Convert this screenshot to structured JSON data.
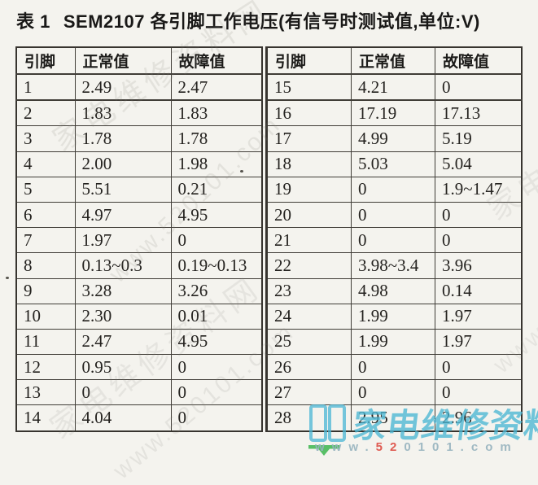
{
  "page": {
    "title_prefix": "表 1",
    "title_text": "SEM2107 各引脚工作电压(有信号时测试值,单位:V)"
  },
  "table": {
    "headers": [
      "引脚",
      "正常值",
      "故障值"
    ],
    "left_rows": [
      [
        "1",
        "2.49",
        "2.47"
      ],
      [
        "2",
        "1.83",
        "1.83"
      ],
      [
        "3",
        "1.78",
        "1.78"
      ],
      [
        "4",
        "2.00",
        "1.98"
      ],
      [
        "5",
        "5.51",
        "0.21"
      ],
      [
        "6",
        "4.97",
        "4.95"
      ],
      [
        "7",
        "1.97",
        "0"
      ],
      [
        "8",
        "0.13~0.3",
        "0.19~0.13"
      ],
      [
        "9",
        "3.28",
        "3.26"
      ],
      [
        "10",
        "2.30",
        "0.01"
      ],
      [
        "11",
        "2.47",
        "4.95"
      ],
      [
        "12",
        "0.95",
        "0"
      ],
      [
        "13",
        "0",
        "0"
      ],
      [
        "14",
        "4.04",
        "0"
      ]
    ],
    "right_rows": [
      [
        "15",
        "4.21",
        "0"
      ],
      [
        "16",
        "17.19",
        "17.13"
      ],
      [
        "17",
        "4.99",
        "5.19"
      ],
      [
        "18",
        "5.03",
        "5.04"
      ],
      [
        "19",
        "0",
        "1.9~1.47"
      ],
      [
        "20",
        "0",
        "0"
      ],
      [
        "21",
        "0",
        "0"
      ],
      [
        "22",
        "3.98~3.4",
        "3.96"
      ],
      [
        "23",
        "4.98",
        "0.14"
      ],
      [
        "24",
        "1.99",
        "1.97"
      ],
      [
        "25",
        "1.99",
        "1.97"
      ],
      [
        "26",
        "0",
        "0"
      ],
      [
        "27",
        "0",
        "0"
      ],
      [
        "28",
        "2.95",
        "2.96"
      ]
    ]
  },
  "watermark": {
    "site_name": "家电维修资料网",
    "site_url_prefix": "www.",
    "site_url_highlight": "52",
    "site_url_suffix": "0101.com",
    "logo_icon": "open-book",
    "colors": {
      "logo_cyan": "#4ab6d4",
      "underline_green": "#3cb54d",
      "url_gray": "#96b2be",
      "url_red": "#dd4a40"
    },
    "tiled_text_cjk": "家电维修资料网",
    "tiled_text_url": "www.520101.com"
  }
}
